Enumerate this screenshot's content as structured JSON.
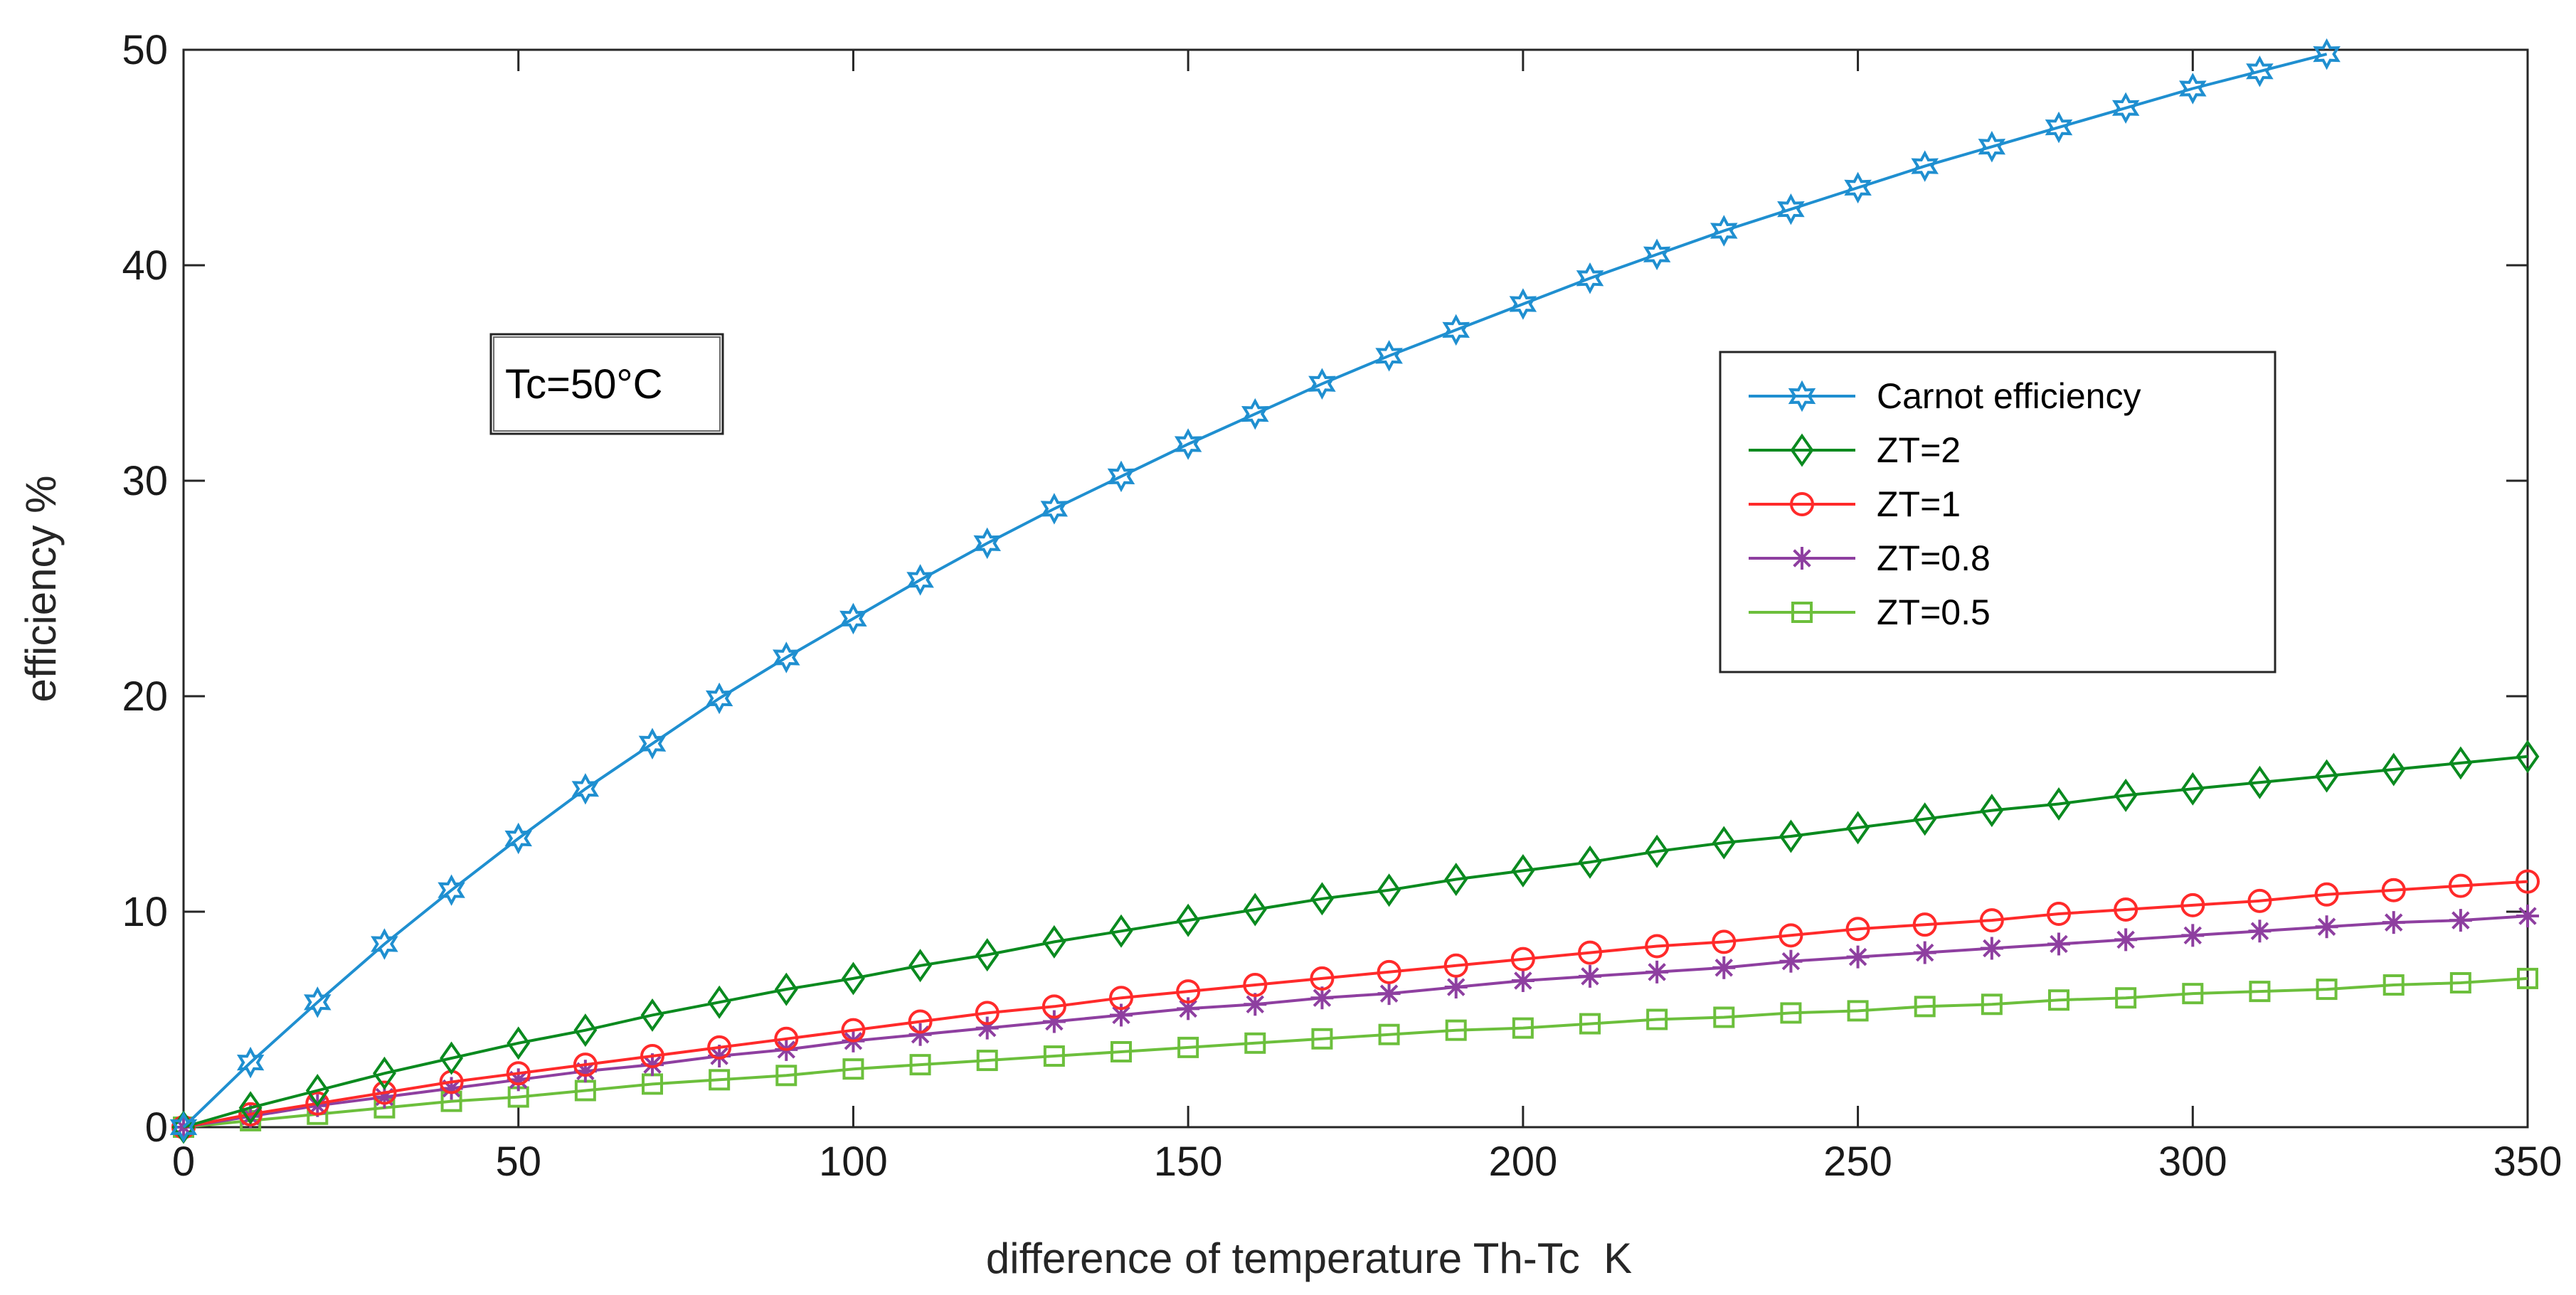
{
  "chart_data": {
    "type": "line",
    "title": "",
    "xlabel": "difference of temperature Th-Tc  K",
    "ylabel": "efficiency %",
    "xlim": [
      0,
      350
    ],
    "ylim": [
      0,
      50
    ],
    "xticks": [
      0,
      50,
      100,
      150,
      200,
      250,
      300,
      350
    ],
    "yticks": [
      0,
      10,
      20,
      30,
      40,
      50
    ],
    "xtick_labels": [
      "0",
      "50",
      "100",
      "150",
      "200",
      "250",
      "300",
      "350"
    ],
    "ytick_labels": [
      "0",
      "10",
      "20",
      "30",
      "40",
      "50"
    ],
    "grid": false,
    "legend_position": "upper-right",
    "annotation": "Tc=50°C",
    "series": [
      {
        "name": "Carnot efficiency",
        "color": "#1f8fd0",
        "marker": "hexagram",
        "x": [
          0,
          10,
          20,
          30,
          40,
          50,
          60,
          70,
          80,
          90,
          100,
          110,
          120,
          130,
          140,
          150,
          160,
          170,
          180,
          190,
          200,
          210,
          220,
          230,
          240,
          250,
          260,
          270,
          280,
          290,
          300,
          310,
          320
        ],
        "values": [
          0,
          3.0,
          5.8,
          8.5,
          11.0,
          13.4,
          15.7,
          17.8,
          19.9,
          21.8,
          23.6,
          25.4,
          27.1,
          28.7,
          30.2,
          31.7,
          33.1,
          34.5,
          35.8,
          37.0,
          38.2,
          39.4,
          40.5,
          41.6,
          42.6,
          43.6,
          44.6,
          45.5,
          46.4,
          47.3,
          48.2,
          49.0,
          49.8
        ]
      },
      {
        "name": "ZT=2",
        "color": "#0a8a1f",
        "marker": "diamond",
        "x": [
          0,
          10,
          20,
          30,
          40,
          50,
          60,
          70,
          80,
          90,
          100,
          110,
          120,
          130,
          140,
          150,
          160,
          170,
          180,
          190,
          200,
          210,
          220,
          230,
          240,
          250,
          260,
          270,
          280,
          290,
          300,
          310,
          320,
          330,
          340,
          350
        ],
        "values": [
          0,
          0.9,
          1.7,
          2.5,
          3.2,
          3.9,
          4.5,
          5.2,
          5.8,
          6.4,
          6.9,
          7.5,
          8.0,
          8.6,
          9.1,
          9.6,
          10.1,
          10.6,
          11.0,
          11.5,
          11.9,
          12.3,
          12.8,
          13.2,
          13.5,
          13.9,
          14.3,
          14.7,
          15.0,
          15.4,
          15.7,
          16.0,
          16.3,
          16.6,
          16.9,
          17.2
        ]
      },
      {
        "name": "ZT=1",
        "color": "#ff2a2a",
        "marker": "circle",
        "x": [
          0,
          10,
          20,
          30,
          40,
          50,
          60,
          70,
          80,
          90,
          100,
          110,
          120,
          130,
          140,
          150,
          160,
          170,
          180,
          190,
          200,
          210,
          220,
          230,
          240,
          250,
          260,
          270,
          280,
          290,
          300,
          310,
          320,
          330,
          340,
          350
        ],
        "values": [
          0,
          0.6,
          1.1,
          1.6,
          2.1,
          2.5,
          2.9,
          3.3,
          3.7,
          4.1,
          4.5,
          4.9,
          5.3,
          5.6,
          6.0,
          6.3,
          6.6,
          6.9,
          7.2,
          7.5,
          7.8,
          8.1,
          8.4,
          8.6,
          8.9,
          9.2,
          9.4,
          9.6,
          9.9,
          10.1,
          10.3,
          10.5,
          10.8,
          11.0,
          11.2,
          11.4
        ]
      },
      {
        "name": "ZT=0.8",
        "color": "#8e3fa0",
        "marker": "asterisk",
        "x": [
          0,
          10,
          20,
          30,
          40,
          50,
          60,
          70,
          80,
          90,
          100,
          110,
          120,
          130,
          140,
          150,
          160,
          170,
          180,
          190,
          200,
          210,
          220,
          230,
          240,
          250,
          260,
          270,
          280,
          290,
          300,
          310,
          320,
          330,
          340,
          350
        ],
        "values": [
          0,
          0.5,
          1.0,
          1.4,
          1.8,
          2.2,
          2.6,
          2.9,
          3.3,
          3.6,
          4.0,
          4.3,
          4.6,
          4.9,
          5.2,
          5.5,
          5.7,
          6.0,
          6.2,
          6.5,
          6.8,
          7.0,
          7.2,
          7.4,
          7.7,
          7.9,
          8.1,
          8.3,
          8.5,
          8.7,
          8.9,
          9.1,
          9.3,
          9.5,
          9.6,
          9.8
        ]
      },
      {
        "name": "ZT=0.5",
        "color": "#6cbf3c",
        "marker": "square",
        "x": [
          0,
          10,
          20,
          30,
          40,
          50,
          60,
          70,
          80,
          90,
          100,
          110,
          120,
          130,
          140,
          150,
          160,
          170,
          180,
          190,
          200,
          210,
          220,
          230,
          240,
          250,
          260,
          270,
          280,
          290,
          300,
          310,
          320,
          330,
          340,
          350
        ],
        "values": [
          0,
          0.3,
          0.6,
          0.9,
          1.2,
          1.4,
          1.7,
          2.0,
          2.2,
          2.4,
          2.7,
          2.9,
          3.1,
          3.3,
          3.5,
          3.7,
          3.9,
          4.1,
          4.3,
          4.5,
          4.6,
          4.8,
          5.0,
          5.1,
          5.3,
          5.4,
          5.6,
          5.7,
          5.9,
          6.0,
          6.2,
          6.3,
          6.4,
          6.6,
          6.7,
          6.9
        ]
      }
    ]
  }
}
